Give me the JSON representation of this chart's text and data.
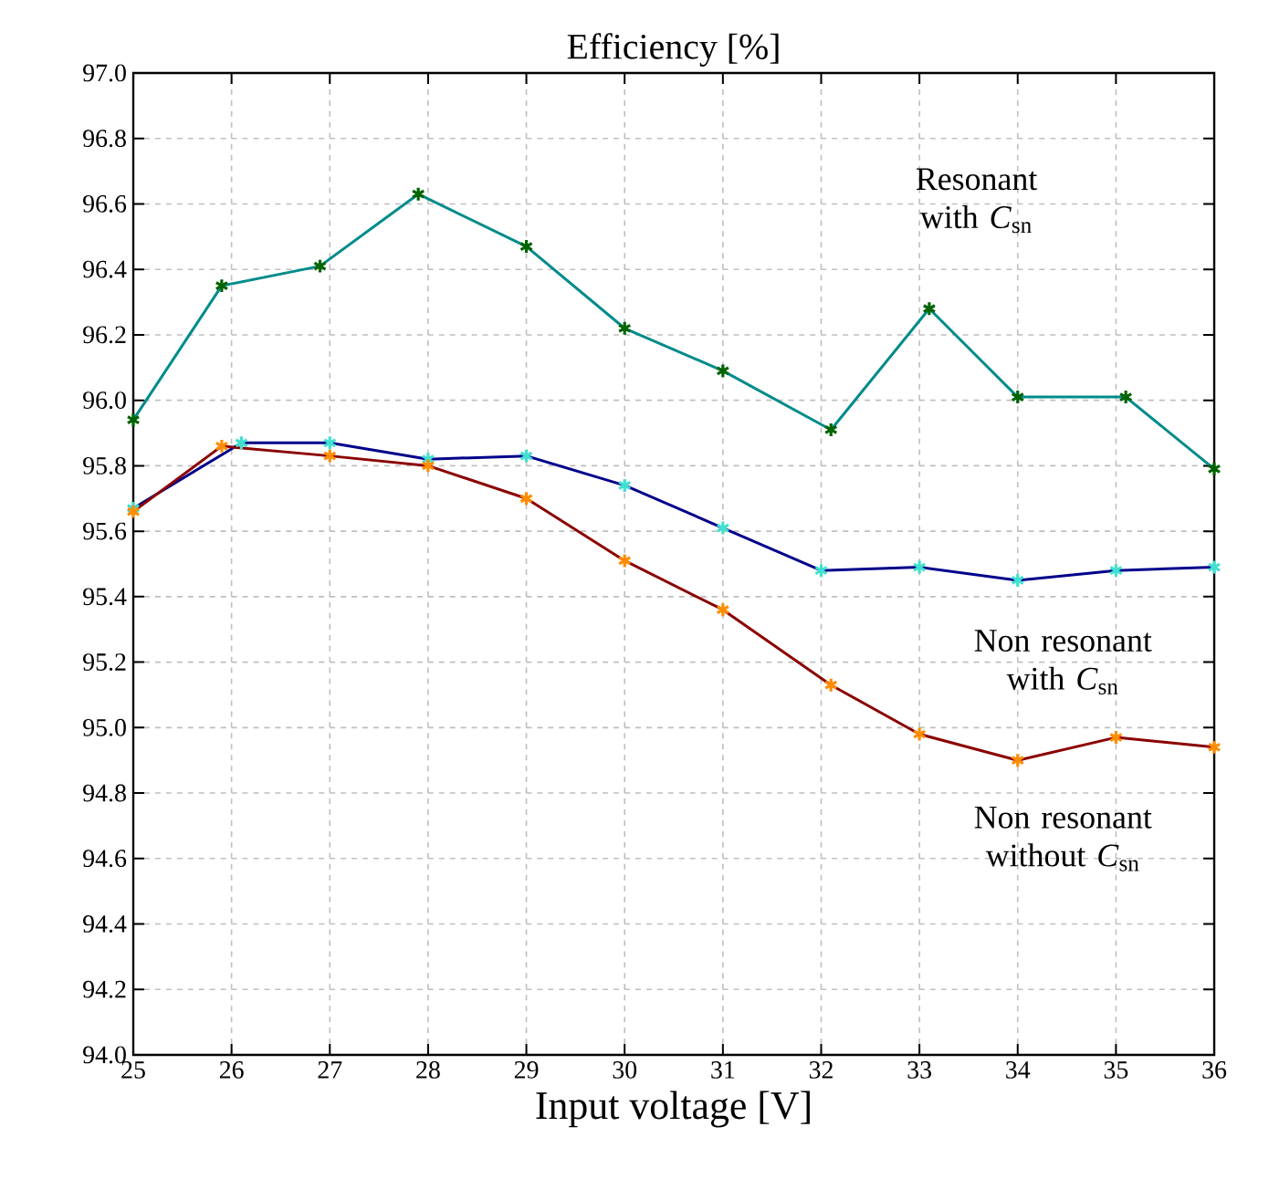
{
  "chart_data": {
    "type": "line",
    "title": "Efficiency [%]",
    "xlabel": "Input voltage [V]",
    "xlim": [
      25,
      36
    ],
    "xticks": [
      25,
      26,
      27,
      28,
      29,
      30,
      31,
      32,
      33,
      34,
      35,
      36
    ],
    "ylim": [
      94,
      97
    ],
    "yticks": [
      {
        "value": 94,
        "label": "94.0"
      },
      94.2,
      94.4,
      94.6,
      94.8,
      {
        "value": 95,
        "label": "95.0"
      },
      95.2,
      95.4,
      95.6,
      95.8,
      {
        "value": 96,
        "label": "96.0"
      },
      96.2,
      96.4,
      96.6,
      96.8,
      {
        "value": 97,
        "label": "97.0"
      }
    ],
    "grid": true,
    "marker": "cross",
    "line_style": "solid",
    "series": [
      {
        "color": "#008b8b",
        "colors": [
          "#006400",
          "#006400",
          "#006400",
          "#006400",
          "#006400",
          "#006400",
          "#006400",
          "#006400",
          "#006400",
          "#006400",
          "#006400",
          "#006400"
        ],
        "x": [
          25.0,
          25.9,
          26.9,
          27.9,
          29.0,
          30.0,
          31.0,
          32.1,
          33.1,
          34.0,
          35.1,
          36.0
        ],
        "values": [
          95.94,
          96.35,
          96.41,
          96.63,
          96.47,
          96.22,
          96.09,
          95.91,
          96.28,
          96.01,
          96.01,
          95.79
        ]
      },
      {
        "color": "#00008b",
        "colors": [
          "#40e0d0",
          "#40e0d0",
          "#40e0d0",
          "#40e0d0",
          "#40e0d0",
          "#40e0d0",
          "#40e0d0",
          "#40e0d0",
          "#40e0d0",
          "#40e0d0",
          "#40e0d0",
          "#40e0d0"
        ],
        "x": [
          25.0,
          26.1,
          27.0,
          28.0,
          29.0,
          30.0,
          31.0,
          32.0,
          33.0,
          34.0,
          35.0,
          36.0
        ],
        "values": [
          95.67,
          95.87,
          95.87,
          95.82,
          95.83,
          95.74,
          95.61,
          95.48,
          95.49,
          95.45,
          95.48,
          95.49
        ]
      },
      {
        "color": "#8b0000",
        "colors": [
          "#ff8c00",
          "#ff8c00",
          "#ff8c00",
          "#ff8c00",
          "#ff8c00",
          "#ff8c00",
          "#ff8c00",
          "#ff8c00",
          "#ff8c00",
          "#ff8c00",
          "#ff8c00",
          "#ff8c00"
        ],
        "x": [
          25.0,
          25.9,
          27.0,
          28.0,
          29.0,
          30.0,
          31.0,
          32.1,
          33.0,
          34.0,
          35.0,
          36.0
        ],
        "values": [
          95.66,
          95.86,
          95.83,
          95.8,
          95.7,
          95.51,
          95.36,
          95.13,
          94.98,
          94.9,
          94.97,
          94.94
        ]
      }
    ],
    "annotations": [
      "Resonant with *C*$_{sn}$",
      "Non resonant with *C*$_{sn}$",
      "Non resonant without *C*$_{sn}$"
    ]
  }
}
